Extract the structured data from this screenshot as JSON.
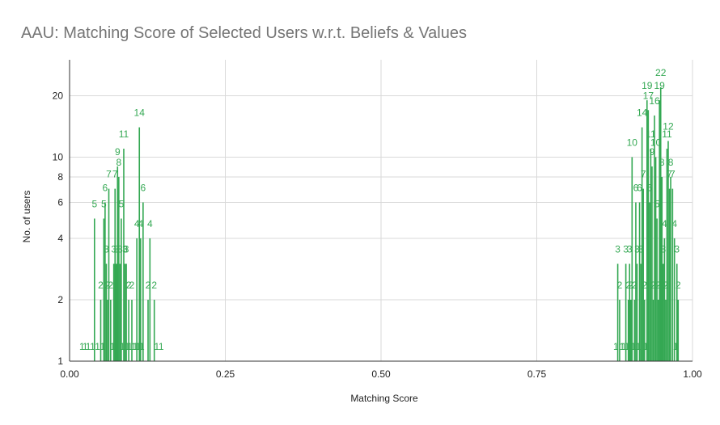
{
  "chart_data": {
    "type": "bar",
    "title": "AAU: Matching Score of Selected Users w.r.t. Beliefs & Values",
    "xlabel": "Matching Score",
    "ylabel": "No. of users",
    "xlim": [
      0,
      1
    ],
    "ylim": [
      1,
      30
    ],
    "y_scale": "log",
    "x_ticks": [
      "0.00",
      "0.25",
      "0.50",
      "0.75",
      "1.00"
    ],
    "y_ticks": [
      "1",
      "2",
      "4",
      "6",
      "8",
      "10",
      "20"
    ],
    "grid": true,
    "legend": "none",
    "bar_color": "#34a853",
    "points": [
      {
        "x": 0.02,
        "y": 1
      },
      {
        "x": 0.025,
        "y": 1
      },
      {
        "x": 0.03,
        "y": 1
      },
      {
        "x": 0.037,
        "y": 1
      },
      {
        "x": 0.04,
        "y": 5
      },
      {
        "x": 0.045,
        "y": 1
      },
      {
        "x": 0.05,
        "y": 2
      },
      {
        "x": 0.053,
        "y": 1
      },
      {
        "x": 0.055,
        "y": 5
      },
      {
        "x": 0.057,
        "y": 6
      },
      {
        "x": 0.059,
        "y": 3
      },
      {
        "x": 0.061,
        "y": 2
      },
      {
        "x": 0.063,
        "y": 7
      },
      {
        "x": 0.066,
        "y": 2
      },
      {
        "x": 0.069,
        "y": 1
      },
      {
        "x": 0.071,
        "y": 3
      },
      {
        "x": 0.073,
        "y": 7
      },
      {
        "x": 0.075,
        "y": 3
      },
      {
        "x": 0.077,
        "y": 9
      },
      {
        "x": 0.079,
        "y": 8
      },
      {
        "x": 0.081,
        "y": 3
      },
      {
        "x": 0.083,
        "y": 5
      },
      {
        "x": 0.085,
        "y": 1
      },
      {
        "x": 0.087,
        "y": 11
      },
      {
        "x": 0.089,
        "y": 3
      },
      {
        "x": 0.091,
        "y": 3
      },
      {
        "x": 0.093,
        "y": 1
      },
      {
        "x": 0.095,
        "y": 2
      },
      {
        "x": 0.097,
        "y": 1
      },
      {
        "x": 0.1,
        "y": 2
      },
      {
        "x": 0.103,
        "y": 1
      },
      {
        "x": 0.106,
        "y": 1
      },
      {
        "x": 0.108,
        "y": 4
      },
      {
        "x": 0.11,
        "y": 1
      },
      {
        "x": 0.112,
        "y": 14
      },
      {
        "x": 0.114,
        "y": 4
      },
      {
        "x": 0.116,
        "y": 1
      },
      {
        "x": 0.118,
        "y": 6
      },
      {
        "x": 0.126,
        "y": 2
      },
      {
        "x": 0.129,
        "y": 4
      },
      {
        "x": 0.136,
        "y": 2
      },
      {
        "x": 0.14,
        "y": 1
      },
      {
        "x": 0.147,
        "y": 1
      },
      {
        "x": 0.877,
        "y": 1
      },
      {
        "x": 0.88,
        "y": 3
      },
      {
        "x": 0.883,
        "y": 2
      },
      {
        "x": 0.887,
        "y": 1
      },
      {
        "x": 0.89,
        "y": 1
      },
      {
        "x": 0.893,
        "y": 3
      },
      {
        "x": 0.895,
        "y": 1
      },
      {
        "x": 0.897,
        "y": 2
      },
      {
        "x": 0.899,
        "y": 3
      },
      {
        "x": 0.901,
        "y": 2
      },
      {
        "x": 0.903,
        "y": 10
      },
      {
        "x": 0.905,
        "y": 1
      },
      {
        "x": 0.907,
        "y": 2
      },
      {
        "x": 0.909,
        "y": 6
      },
      {
        "x": 0.911,
        "y": 3
      },
      {
        "x": 0.913,
        "y": 1
      },
      {
        "x": 0.915,
        "y": 6
      },
      {
        "x": 0.917,
        "y": 3
      },
      {
        "x": 0.919,
        "y": 14
      },
      {
        "x": 0.921,
        "y": 7
      },
      {
        "x": 0.923,
        "y": 2
      },
      {
        "x": 0.925,
        "y": 1
      },
      {
        "x": 0.927,
        "y": 19
      },
      {
        "x": 0.929,
        "y": 17
      },
      {
        "x": 0.931,
        "y": 6
      },
      {
        "x": 0.933,
        "y": 11
      },
      {
        "x": 0.935,
        "y": 9
      },
      {
        "x": 0.937,
        "y": 2
      },
      {
        "x": 0.939,
        "y": 16
      },
      {
        "x": 0.941,
        "y": 10
      },
      {
        "x": 0.943,
        "y": 5
      },
      {
        "x": 0.945,
        "y": 2
      },
      {
        "x": 0.947,
        "y": 19
      },
      {
        "x": 0.949,
        "y": 22
      },
      {
        "x": 0.951,
        "y": 8
      },
      {
        "x": 0.953,
        "y": 3
      },
      {
        "x": 0.955,
        "y": 4
      },
      {
        "x": 0.957,
        "y": 2
      },
      {
        "x": 0.959,
        "y": 11
      },
      {
        "x": 0.961,
        "y": 12
      },
      {
        "x": 0.963,
        "y": 7
      },
      {
        "x": 0.965,
        "y": 8
      },
      {
        "x": 0.968,
        "y": 7
      },
      {
        "x": 0.971,
        "y": 4
      },
      {
        "x": 0.973,
        "y": 1
      },
      {
        "x": 0.975,
        "y": 3
      },
      {
        "x": 0.977,
        "y": 2
      }
    ]
  }
}
